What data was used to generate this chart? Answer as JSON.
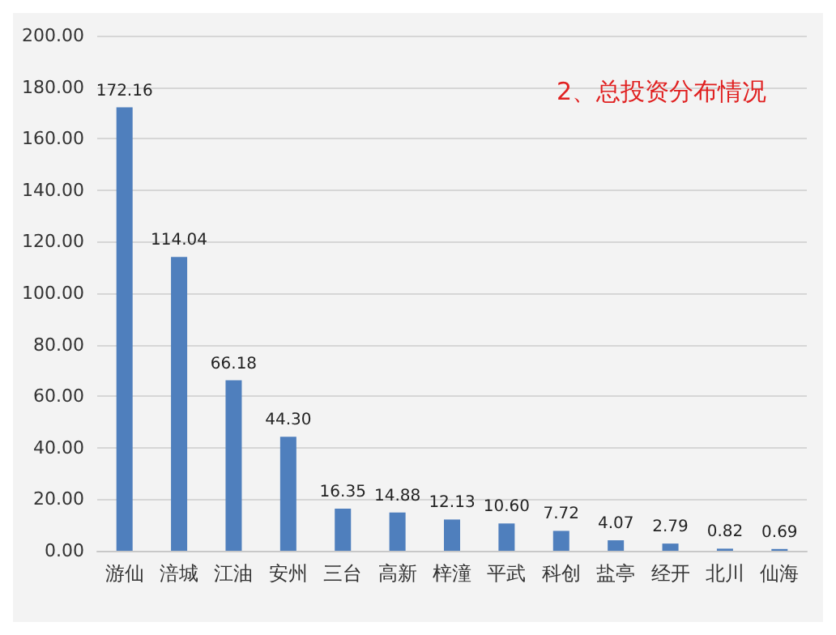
{
  "chart_data": {
    "type": "bar",
    "title": "2、总投资分布情况",
    "categories": [
      "游仙",
      "涪城",
      "江油",
      "安州",
      "三台",
      "高新",
      "梓潼",
      "平武",
      "科创",
      "盐亭",
      "经开",
      "北川",
      "仙海"
    ],
    "values": [
      172.16,
      114.04,
      66.18,
      44.3,
      16.35,
      14.88,
      12.13,
      10.6,
      7.72,
      4.07,
      2.79,
      0.82,
      0.69
    ],
    "value_labels": [
      "172.16",
      "114.04",
      "66.18",
      "44.30",
      "16.35",
      "14.88",
      "12.13",
      "10.60",
      "7.72",
      "4.07",
      "2.79",
      "0.82",
      "0.69"
    ],
    "color": "#4f7fbd",
    "ylim": [
      0,
      200
    ],
    "yticks": [
      {
        "value": 0,
        "label": "0.00"
      },
      {
        "value": 20,
        "label": "20.00"
      },
      {
        "value": 40,
        "label": "40.00"
      },
      {
        "value": 60,
        "label": "60.00"
      },
      {
        "value": 80,
        "label": "80.00"
      },
      {
        "value": 100,
        "label": "100.00"
      },
      {
        "value": 120,
        "label": "120.00"
      },
      {
        "value": 140,
        "label": "140.00"
      },
      {
        "value": 160,
        "label": "160.00"
      },
      {
        "value": 180,
        "label": "180.00"
      },
      {
        "value": 200,
        "label": "200.00"
      }
    ],
    "grid": "y"
  }
}
